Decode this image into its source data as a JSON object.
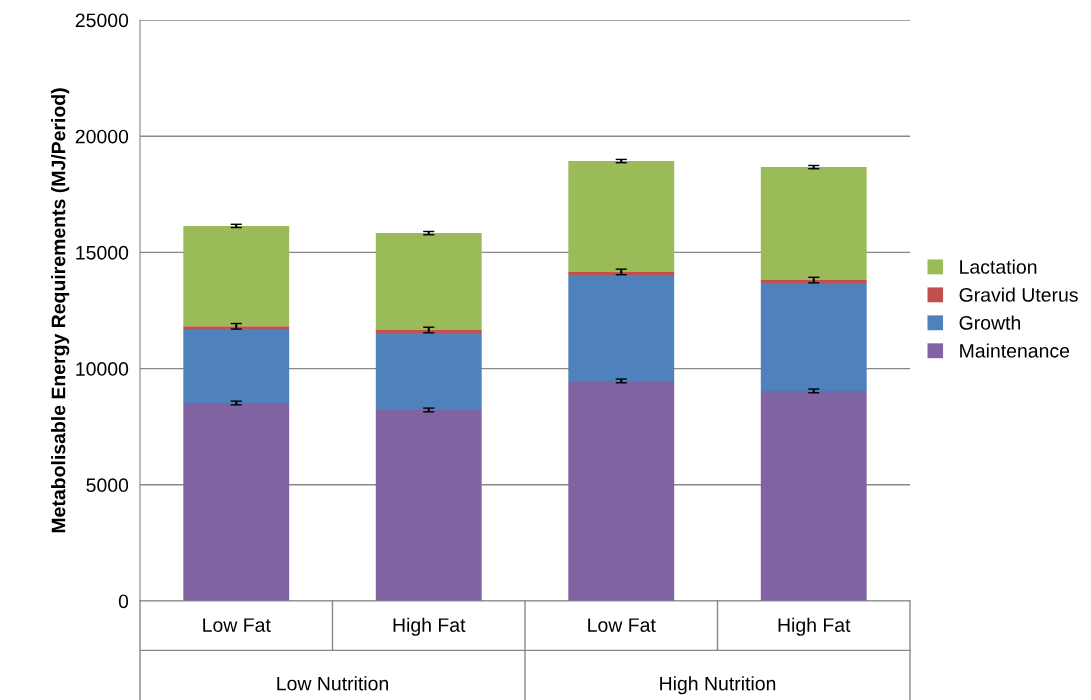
{
  "chart_data": {
    "type": "bar",
    "stacked": true,
    "ylabel": "Metabolisable Energy Requirements (MJ/Period)",
    "categories": [
      "Low Fat",
      "High Fat",
      "Low Fat",
      "High Fat"
    ],
    "annotations": [
      "Low Nutrition",
      "High Nutrition"
    ],
    "series": [
      {
        "name": "Maintenance",
        "color": "#8064a2",
        "values": [
          8520,
          8220,
          9470,
          9040
        ],
        "errors": [
          80,
          80,
          80,
          80
        ]
      },
      {
        "name": "Growth",
        "color": "#4f81bd",
        "values": [
          3180,
          3310,
          4560,
          4640
        ]
      },
      {
        "name": "Gravid Uterus",
        "color": "#c0504d",
        "values": [
          120,
          130,
          130,
          130
        ],
        "errors": [
          120,
          120,
          120,
          120
        ]
      },
      {
        "name": "Lactation",
        "color": "#9bbb59",
        "values": [
          4320,
          4170,
          4770,
          4860
        ],
        "errors": [
          70,
          70,
          70,
          70
        ]
      }
    ],
    "ylim": [
      0,
      25000
    ],
    "yticks": [
      0,
      5000,
      10000,
      15000,
      20000,
      25000
    ],
    "grid": "y",
    "legend": "right"
  }
}
